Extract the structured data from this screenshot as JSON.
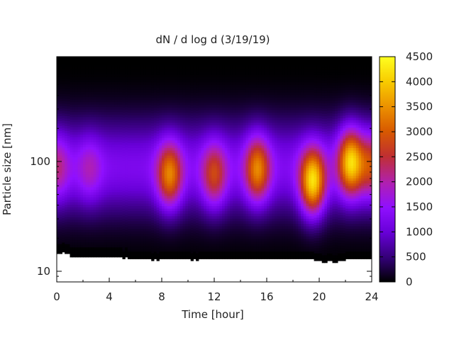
{
  "chart_data": {
    "type": "heatmap",
    "title": "dN / d log d (3/19/19)",
    "xlabel": "Time [hour]",
    "ylabel": "Particle size [nm]",
    "xlim": [
      0,
      24
    ],
    "ylim_nm": [
      8,
      900
    ],
    "yscale": "log",
    "x_ticks": [
      0,
      4,
      8,
      12,
      16,
      20,
      24
    ],
    "x_tick_labels": [
      "0",
      "4",
      "8",
      "12",
      "16",
      "20",
      "24"
    ],
    "y_ticks": [
      10,
      100
    ],
    "y_tick_labels": [
      "10",
      "100"
    ],
    "colorbar": {
      "min": 0,
      "max": 4500,
      "ticks": [
        0,
        500,
        1000,
        1500,
        2000,
        2500,
        3000,
        3500,
        4000,
        4500
      ],
      "tick_labels": [
        "0",
        "500",
        "1000",
        "1500",
        "2000",
        "2500",
        "3000",
        "3500",
        "4000",
        "4500"
      ],
      "palette": [
        "#000000",
        "#5a00b0",
        "#8a00ff",
        "#a020e0",
        "#b41a8c",
        "#c8301e",
        "#dc6e00",
        "#f0a800",
        "#ffff00"
      ]
    },
    "size_range_lower_nm": [
      14.5,
      14.5,
      15.0,
      14.5,
      14.5,
      13.5,
      13.5,
      13.5,
      13.5,
      13.5,
      13.5,
      13.5,
      13.5,
      13.5,
      13.5,
      13.5,
      13.5,
      13.5,
      13.5,
      13.5,
      13.5,
      13.5,
      13.5,
      13.5,
      13.5,
      13.0,
      13.5,
      13.0,
      13.0,
      13.0,
      13.0,
      13.0,
      13.0,
      13.0,
      13.0,
      13.0,
      12.5,
      13.0,
      12.5,
      13.0,
      13.0,
      13.0,
      13.0,
      13.0,
      13.0,
      13.0,
      13.0,
      13.0,
      13.0,
      13.0,
      13.0,
      12.5,
      13.0,
      12.5,
      13.0,
      13.0,
      13.0,
      13.0,
      13.0,
      13.0,
      13.0,
      13.0,
      13.0,
      13.0,
      13.0,
      13.0,
      13.0,
      13.0,
      13.0,
      13.0,
      13.0,
      13.0,
      13.0,
      13.0,
      13.0,
      13.0,
      13.0,
      13.0,
      13.0,
      13.0,
      13.0,
      13.0,
      13.0,
      13.0,
      13.0,
      13.0,
      13.0,
      13.0,
      13.0,
      13.0,
      13.0,
      13.0,
      13.0,
      13.0,
      13.0,
      13.0,
      13.0,
      13.0,
      12.5,
      12.5,
      12.5,
      12.0,
      12.0,
      12.5,
      12.5,
      12.0,
      12.0,
      12.5,
      12.5,
      12.5,
      13.0,
      13.0,
      13.0,
      13.0,
      13.0,
      13.0,
      13.0,
      13.0,
      13.0,
      13.0
    ],
    "size_range_upper_nm": 900,
    "events": [
      {
        "x": 0.0,
        "y": 90,
        "z": 2100
      },
      {
        "x": 2.5,
        "y": 85,
        "z": 1800
      },
      {
        "x": 8.6,
        "y": 75,
        "z": 3300
      },
      {
        "x": 12.0,
        "y": 75,
        "z": 2700
      },
      {
        "x": 15.3,
        "y": 85,
        "z": 3300
      },
      {
        "x": 19.5,
        "y": 65,
        "z": 4200
      },
      {
        "x": 22.4,
        "y": 100,
        "z": 4000
      },
      {
        "x": 24.0,
        "y": 95,
        "z": 2600
      }
    ]
  }
}
